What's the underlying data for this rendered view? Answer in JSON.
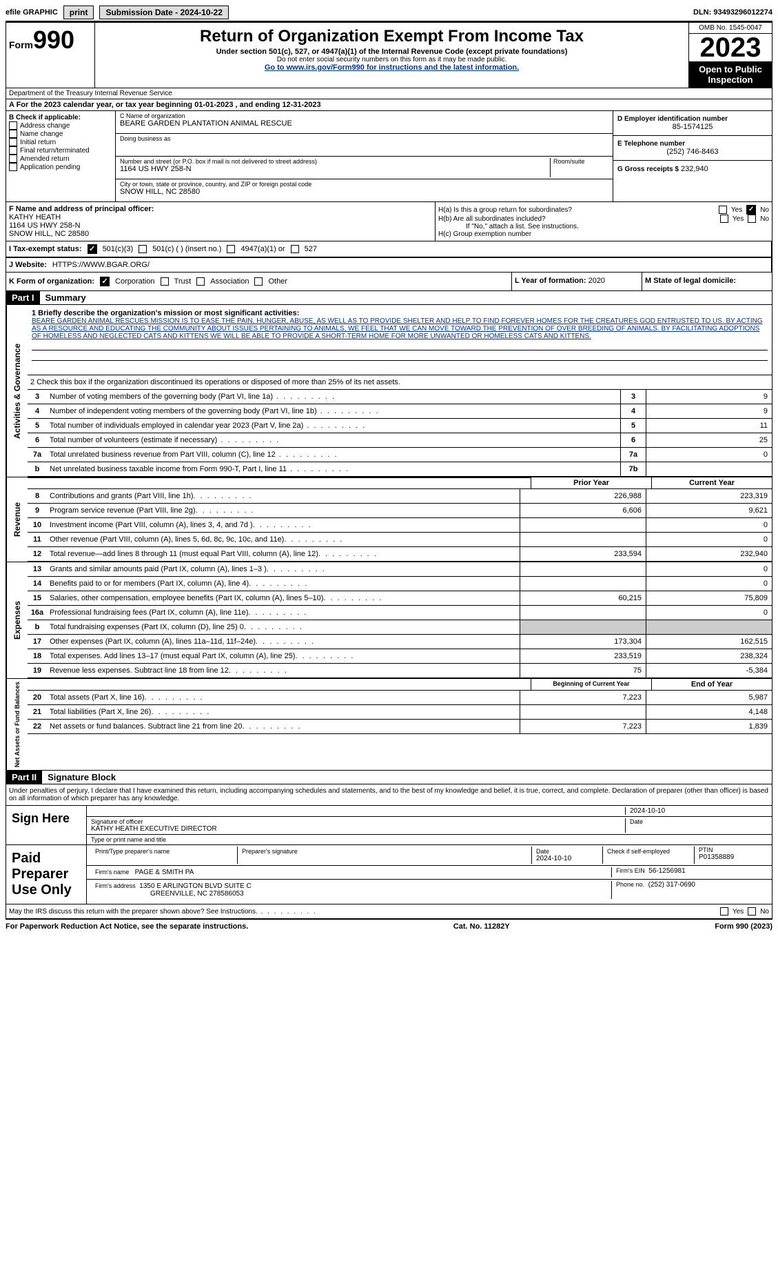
{
  "topbar": {
    "efile": "efile GRAPHIC",
    "print": "print",
    "submission": "Submission Date - 2024-10-22",
    "dln": "DLN: 93493296012274"
  },
  "header": {
    "form": "Form",
    "form_num": "990",
    "title": "Return of Organization Exempt From Income Tax",
    "subtitle": "Under section 501(c), 527, or 4947(a)(1) of the Internal Revenue Code (except private foundations)",
    "note1": "Do not enter social security numbers on this form as it may be made public.",
    "note2_pre": "Go to ",
    "note2_link": "www.irs.gov/Form990",
    "note2_post": " for instructions and the latest information.",
    "omb": "OMB No. 1545-0047",
    "year": "2023",
    "open": "Open to Public Inspection",
    "dept": "Department of the Treasury Internal Revenue Service"
  },
  "row_a": "A  For the 2023 calendar year, or tax year beginning 01-01-2023    , and ending 12-31-2023",
  "section_b": {
    "label": "B Check if applicable:",
    "options": [
      "Address change",
      "Name change",
      "Initial return",
      "Final return/terminated",
      "Amended return",
      "Application pending"
    ],
    "c_label": "C Name of organization",
    "c_name": "BEARE GARDEN PLANTATION ANIMAL RESCUE",
    "dba_label": "Doing business as",
    "addr_label": "Number and street (or P.O. box if mail is not delivered to street address)",
    "room_label": "Room/suite",
    "addr": "1164 US HWY 258-N",
    "city_label": "City or town, state or province, country, and ZIP or foreign postal code",
    "city": "SNOW HILL, NC  28580",
    "d_label": "D Employer identification number",
    "d_val": "85-1574125",
    "e_label": "E Telephone number",
    "e_val": "(252) 746-8463",
    "g_label": "G Gross receipts $",
    "g_val": "232,940"
  },
  "row_f": {
    "f_label": "F  Name and address of principal officer:",
    "f_name": "KATHY HEATH",
    "f_addr1": "1164 US HWY 258-N",
    "f_addr2": "SNOW HILL, NC  28580",
    "ha": "H(a)  Is this a group return for subordinates?",
    "hb": "H(b)  Are all subordinates included?",
    "hb_note": "If \"No,\" attach a list. See instructions.",
    "hc": "H(c)  Group exemption number"
  },
  "row_i": {
    "label": "I   Tax-exempt status:",
    "opt1": "501(c)(3)",
    "opt2": "501(c) (  ) (insert no.)",
    "opt3": "4947(a)(1) or",
    "opt4": "527"
  },
  "row_j": {
    "label": "J   Website:",
    "url": "HTTPS://WWW.BGAR.ORG/"
  },
  "row_k": {
    "label": "K Form of organization:",
    "opts": [
      "Corporation",
      "Trust",
      "Association",
      "Other"
    ],
    "l_label": "L Year of formation:",
    "l_val": "2020",
    "m_label": "M State of legal domicile:"
  },
  "part1": {
    "header": "Part I",
    "title": "Summary",
    "side1": "Activities & Governance",
    "line1_label": "1   Briefly describe the organization's mission or most significant activities:",
    "mission": "BEARE GARDEN ANIMAL RESCUES MISSION IS TO EASE THE PAIN, HUNGER, ABUSE, AS WELL AS TO PROVIDE SHELTER AND HELP TO FIND FOREVER HOMES FOR THE CREATURES GOD ENTRUSTED TO US. BY ACTING AS A RESOURCE AND EDUCATING THE COMMUNITY ABOUT ISSUES PERTAINING TO ANIMALS, WE FEEL THAT WE CAN MOVE TOWARD THE PREVENTION OF OVER BREEDING OF ANIMALS. BY FACILITATING ADOPTIONS OF HOMELESS AND NEGLECTED CATS AND KITTENS WE WILL BE ABLE TO PROVIDE A SHORT-TERM HOME FOR MORE UNWANTED OR HOMELESS CATS AND KITTENS.",
    "line2": "2    Check this box        if the organization discontinued its operations or disposed of more than 25% of its net assets.",
    "rows": [
      {
        "n": "3",
        "d": "Number of voting members of the governing body (Part VI, line 1a)",
        "box": "3",
        "v": "9"
      },
      {
        "n": "4",
        "d": "Number of independent voting members of the governing body (Part VI, line 1b)",
        "box": "4",
        "v": "9"
      },
      {
        "n": "5",
        "d": "Total number of individuals employed in calendar year 2023 (Part V, line 2a)",
        "box": "5",
        "v": "11"
      },
      {
        "n": "6",
        "d": "Total number of volunteers (estimate if necessary)",
        "box": "6",
        "v": "25"
      },
      {
        "n": "7a",
        "d": "Total unrelated business revenue from Part VIII, column (C), line 12",
        "box": "7a",
        "v": "0"
      },
      {
        "n": "b",
        "d": "Net unrelated business taxable income from Form 990-T, Part I, line 11",
        "box": "7b",
        "v": ""
      }
    ],
    "side2": "Revenue",
    "col_prior": "Prior Year",
    "col_current": "Current Year",
    "revenue": [
      {
        "n": "8",
        "d": "Contributions and grants (Part VIII, line 1h)",
        "p": "226,988",
        "c": "223,319"
      },
      {
        "n": "9",
        "d": "Program service revenue (Part VIII, line 2g)",
        "p": "6,606",
        "c": "9,621"
      },
      {
        "n": "10",
        "d": "Investment income (Part VIII, column (A), lines 3, 4, and 7d )",
        "p": "",
        "c": "0"
      },
      {
        "n": "11",
        "d": "Other revenue (Part VIII, column (A), lines 5, 6d, 8c, 9c, 10c, and 11e)",
        "p": "",
        "c": "0"
      },
      {
        "n": "12",
        "d": "Total revenue—add lines 8 through 11 (must equal Part VIII, column (A), line 12)",
        "p": "233,594",
        "c": "232,940"
      }
    ],
    "side3": "Expenses",
    "expenses": [
      {
        "n": "13",
        "d": "Grants and similar amounts paid (Part IX, column (A), lines 1–3 )",
        "p": "",
        "c": "0"
      },
      {
        "n": "14",
        "d": "Benefits paid to or for members (Part IX, column (A), line 4)",
        "p": "",
        "c": "0"
      },
      {
        "n": "15",
        "d": "Salaries, other compensation, employee benefits (Part IX, column (A), lines 5–10)",
        "p": "60,215",
        "c": "75,809"
      },
      {
        "n": "16a",
        "d": "Professional fundraising fees (Part IX, column (A), line 11e)",
        "p": "",
        "c": "0"
      },
      {
        "n": "b",
        "d": "Total fundraising expenses (Part IX, column (D), line 25) 0",
        "p": "shaded",
        "c": "shaded"
      },
      {
        "n": "17",
        "d": "Other expenses (Part IX, column (A), lines 11a–11d, 11f–24e)",
        "p": "173,304",
        "c": "162,515"
      },
      {
        "n": "18",
        "d": "Total expenses. Add lines 13–17 (must equal Part IX, column (A), line 25)",
        "p": "233,519",
        "c": "238,324"
      },
      {
        "n": "19",
        "d": "Revenue less expenses. Subtract line 18 from line 12",
        "p": "75",
        "c": "-5,384"
      }
    ],
    "side4": "Net Assets or Fund Balances",
    "col_begin": "Beginning of Current Year",
    "col_end": "End of Year",
    "netassets": [
      {
        "n": "20",
        "d": "Total assets (Part X, line 16)",
        "p": "7,223",
        "c": "5,987"
      },
      {
        "n": "21",
        "d": "Total liabilities (Part X, line 26)",
        "p": "",
        "c": "4,148"
      },
      {
        "n": "22",
        "d": "Net assets or fund balances. Subtract line 21 from line 20",
        "p": "7,223",
        "c": "1,839"
      }
    ]
  },
  "part2": {
    "header": "Part II",
    "title": "Signature Block",
    "text": "Under penalties of perjury, I declare that I have examined this return, including accompanying schedules and statements, and to the best of my knowledge and belief, it is true, correct, and complete. Declaration of preparer (other than officer) is based on all information of which preparer has any knowledge.",
    "sign_here": "Sign Here",
    "date1": "2024-10-10",
    "sig_officer": "Signature of officer",
    "officer_name": "KATHY HEATH  EXECUTIVE DIRECTOR",
    "type_name": "Type or print name and title",
    "date_label": "Date",
    "paid": "Paid Preparer Use Only",
    "prep_name_label": "Print/Type preparer's name",
    "prep_sig_label": "Preparer's signature",
    "prep_date": "2024-10-10",
    "check_self": "Check         if self-employed",
    "ptin_label": "PTIN",
    "ptin": "P01358889",
    "firm_name_label": "Firm's name",
    "firm_name": "PAGE & SMITH PA",
    "firm_ein_label": "Firm's EIN",
    "firm_ein": "56-1256981",
    "firm_addr_label": "Firm's address",
    "firm_addr1": "1350 E ARLINGTON BLVD SUITE C",
    "firm_addr2": "GREENVILLE, NC  278586053",
    "phone_label": "Phone no.",
    "phone": "(252) 317-0690",
    "may_discuss": "May the IRS discuss this return with the preparer shown above? See Instructions.",
    "yes": "Yes",
    "no": "No"
  },
  "footer": {
    "left": "For Paperwork Reduction Act Notice, see the separate instructions.",
    "mid": "Cat. No. 11282Y",
    "right": "Form 990 (2023)"
  }
}
